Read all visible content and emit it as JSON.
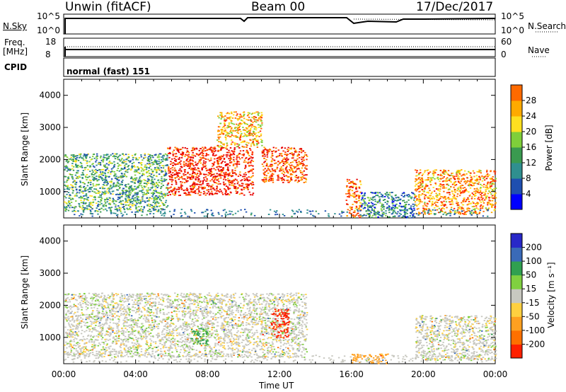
{
  "header": {
    "station": "Unwin (fitACF)",
    "beam": "Beam 00",
    "date": "17/Dec/2017"
  },
  "noise_panel": {
    "left_label": "N.Sky",
    "left_ticks": [
      "10^5",
      "10^0"
    ],
    "right_ticks": [
      "10^5",
      "10^0"
    ],
    "right_label": "N.Search"
  },
  "freq_panel": {
    "left_label_line1": "Freq.",
    "left_label_line2": "[MHz]",
    "left_ticks": [
      "18",
      "8"
    ],
    "right_ticks": [
      "60",
      "0"
    ],
    "right_label": "Nave"
  },
  "cpid_panel": {
    "label": "CPID",
    "value": "normal (fast) 151"
  },
  "colors": {
    "power": [
      "#0000ff",
      "#1f4fb0",
      "#2f8f8f",
      "#3a9a50",
      "#7fcf3a",
      "#ffe020",
      "#ffaa00",
      "#ff6a00",
      "#ff2800",
      "#e60000"
    ],
    "velocity": [
      "#2828c8",
      "#3a6ab8",
      "#30a050",
      "#80d040",
      "#c8c8c0",
      "#ffd040",
      "#ffa020",
      "#ff7000",
      "#ff2000"
    ]
  },
  "chart_data": [
    {
      "type": "heatmap",
      "name": "Power",
      "x_range": [
        "00:00",
        "24:00"
      ],
      "ylabel": "Slant Range [km]",
      "ylim": [
        180,
        4500
      ],
      "y_ticks": [
        1000,
        2000,
        3000,
        4000
      ],
      "colorbar": {
        "label": "Power [dB]",
        "range": [
          0,
          32
        ],
        "ticks": [
          4,
          8,
          12,
          16,
          20,
          24,
          28
        ]
      },
      "regions": [
        {
          "t_start": "00:00",
          "t_end": "05:45",
          "range_km": [
            400,
            2200
          ],
          "power_db": 11
        },
        {
          "t_start": "05:45",
          "t_end": "10:30",
          "range_km": [
            900,
            2400
          ],
          "power_db": 28
        },
        {
          "t_start": "08:30",
          "t_end": "11:00",
          "range_km": [
            2400,
            3500
          ],
          "power_db": 20
        },
        {
          "t_start": "11:00",
          "t_end": "13:30",
          "range_km": [
            1300,
            2400
          ],
          "power_db": 26
        },
        {
          "t_start": "15:40",
          "t_end": "16:30",
          "range_km": [
            200,
            1400
          ],
          "power_db": 24
        },
        {
          "t_start": "16:30",
          "t_end": "19:30",
          "range_km": [
            200,
            1000
          ],
          "power_db": 8
        },
        {
          "t_start": "19:30",
          "t_end": "24:00",
          "range_km": [
            300,
            1700
          ],
          "power_db": 22
        }
      ]
    },
    {
      "type": "heatmap",
      "name": "Velocity",
      "x_range": [
        "00:00",
        "24:00"
      ],
      "xlabel": "Time UT",
      "x_ticks": [
        "00:00",
        "04:00",
        "08:00",
        "12:00",
        "16:00",
        "20:00",
        "00:00"
      ],
      "ylabel": "Slant Range [km]",
      "ylim": [
        180,
        4500
      ],
      "y_ticks": [
        1000,
        2000,
        3000,
        4000
      ],
      "colorbar": {
        "label": "Velocity [m s⁻¹]",
        "ticks": [
          "200",
          "100",
          "50",
          "15",
          "-15",
          "-50",
          "-100",
          "-200"
        ]
      },
      "regions": [
        {
          "t_start": "00:00",
          "t_end": "13:30",
          "range_km": [
            400,
            2400
          ],
          "velocity_ms": 0
        },
        {
          "t_start": "11:30",
          "t_end": "12:30",
          "range_km": [
            1000,
            1900
          ],
          "velocity_ms": -220
        },
        {
          "t_start": "07:00",
          "t_end": "08:00",
          "range_km": [
            800,
            1300
          ],
          "velocity_ms": 60
        },
        {
          "t_start": "16:00",
          "t_end": "18:00",
          "range_km": [
            200,
            500
          ],
          "velocity_ms": -70
        },
        {
          "t_start": "19:30",
          "t_end": "24:00",
          "range_km": [
            300,
            1700
          ],
          "velocity_ms": 0
        }
      ]
    }
  ]
}
